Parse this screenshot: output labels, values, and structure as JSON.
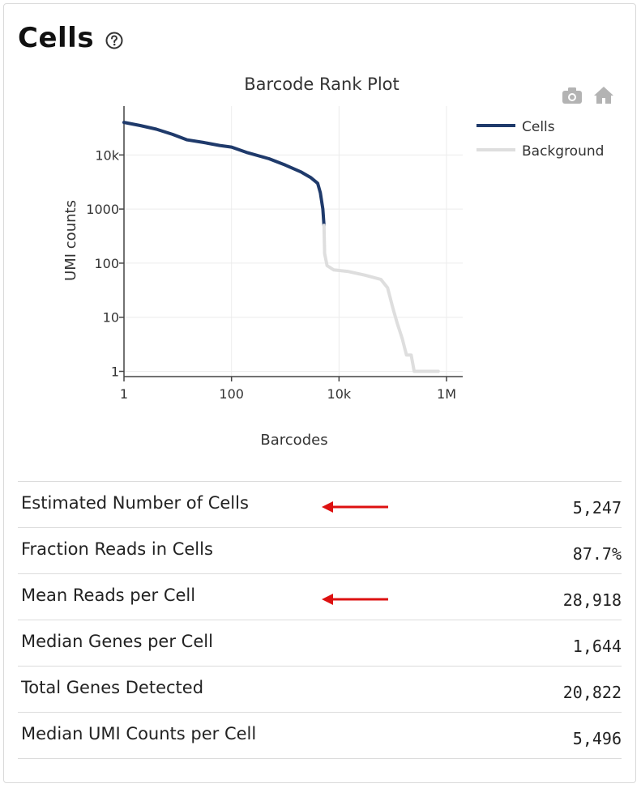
{
  "section": {
    "title": "Cells",
    "help_icon": "question-circle-icon"
  },
  "plot_toolbar": {
    "icons": [
      "camera-icon",
      "home-icon"
    ]
  },
  "chart_data": {
    "type": "line",
    "title": "Barcode Rank Plot",
    "xlabel": "Barcodes",
    "ylabel": "UMI counts",
    "x_scale": "log",
    "y_scale": "log",
    "xlim": [
      1,
      2000000
    ],
    "ylim": [
      0.8,
      80000
    ],
    "x_ticks": [
      {
        "value": 1,
        "label": "1"
      },
      {
        "value": 100,
        "label": "100"
      },
      {
        "value": 10000,
        "label": "10k"
      },
      {
        "value": 1000000,
        "label": "1M"
      }
    ],
    "y_ticks": [
      {
        "value": 1,
        "label": "1"
      },
      {
        "value": 10,
        "label": "10"
      },
      {
        "value": 100,
        "label": "100"
      },
      {
        "value": 1000,
        "label": "1000"
      },
      {
        "value": 10000,
        "label": "10k"
      }
    ],
    "grid": true,
    "legend_position": "right",
    "series": [
      {
        "name": "Cells",
        "color": "#1f3a6b",
        "x": [
          1,
          2,
          4,
          8,
          15,
          30,
          60,
          100,
          200,
          500,
          1000,
          2000,
          3000,
          4000,
          4500,
          5000,
          5247
        ],
        "y": [
          40000,
          35000,
          30000,
          24000,
          19000,
          17000,
          15000,
          14000,
          11000,
          8500,
          6500,
          4800,
          3800,
          3000,
          2000,
          1000,
          500
        ]
      },
      {
        "name": "Background",
        "color": "#dedede",
        "x": [
          5247,
          5400,
          6000,
          8000,
          15000,
          30000,
          60000,
          80000,
          100000,
          120000,
          150000,
          180000,
          200000,
          220000,
          250000,
          300000,
          700000
        ],
        "y": [
          500,
          150,
          90,
          75,
          70,
          60,
          50,
          35,
          15,
          8,
          4,
          2,
          2,
          2,
          1,
          1,
          1
        ]
      }
    ]
  },
  "metrics": [
    {
      "label": "Estimated Number of Cells",
      "value": "5,247",
      "arrow": true
    },
    {
      "label": "Fraction Reads in Cells",
      "value": "87.7%",
      "arrow": false
    },
    {
      "label": "Mean Reads per Cell",
      "value": "28,918",
      "arrow": true
    },
    {
      "label": "Median Genes per Cell",
      "value": "1,644",
      "arrow": false
    },
    {
      "label": "Total Genes Detected",
      "value": "20,822",
      "arrow": false
    },
    {
      "label": "Median UMI Counts per Cell",
      "value": "5,496",
      "arrow": false
    }
  ],
  "colors": {
    "arrow": "#dd1111",
    "cells_line": "#1f3a6b",
    "background_line": "#dedede",
    "grid": "#ececec",
    "icon_gray": "#b3b3b3"
  }
}
